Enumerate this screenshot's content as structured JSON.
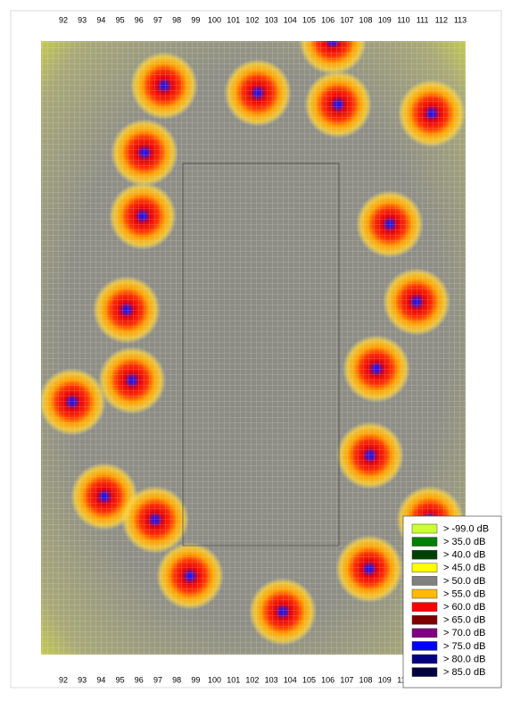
{
  "map": {
    "x_ticks": [
      92,
      93,
      94,
      95,
      96,
      97,
      98,
      99,
      100,
      101,
      102,
      103,
      104,
      105,
      106,
      107,
      108,
      109,
      110,
      111,
      112,
      113
    ],
    "legend": [
      {
        "label": "> -99.0 dB",
        "color": "#ccff33"
      },
      {
        "label": "> 35.0 dB",
        "color": "#008000"
      },
      {
        "label": "> 40.0 dB",
        "color": "#004000"
      },
      {
        "label": "> 45.0 dB",
        "color": "#ffff00"
      },
      {
        "label": "> 50.0 dB",
        "color": "#808080"
      },
      {
        "label": "> 55.0 dB",
        "color": "#ffbb00"
      },
      {
        "label": "> 60.0 dB",
        "color": "#ff0000"
      },
      {
        "label": "> 65.0 dB",
        "color": "#800000"
      },
      {
        "label": "> 70.0 dB",
        "color": "#800080"
      },
      {
        "label": "> 75.0 dB",
        "color": "#0000ff"
      },
      {
        "label": "> 80.0 dB",
        "color": "#000080"
      },
      {
        "label": "> 85.0 dB",
        "color": "#000040"
      }
    ]
  }
}
